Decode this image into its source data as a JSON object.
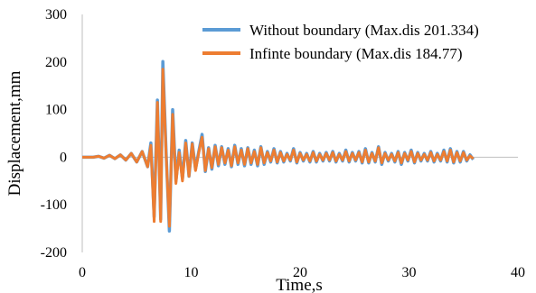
{
  "chart_data": {
    "type": "line",
    "title": "",
    "xlabel": "Time,s",
    "ylabel": "Displacement,mm",
    "xlim": [
      0,
      40
    ],
    "ylim": [
      -200,
      300
    ],
    "x_ticks": [
      0,
      10,
      20,
      30,
      40
    ],
    "y_ticks": [
      -200,
      -100,
      0,
      100,
      200,
      300
    ],
    "x_tick_labels": [
      "0",
      "10",
      "20",
      "30",
      "40"
    ],
    "y_tick_labels": [
      "-200",
      "-100",
      "0",
      "100",
      "200",
      "300"
    ],
    "grid": "none",
    "legend_position": "top-right",
    "series": [
      {
        "name": "Without boundary (Max.dis 201.334)",
        "color": "#5B9BD5",
        "x": [
          0.0,
          1.0,
          1.5,
          2.0,
          2.5,
          3.0,
          3.5,
          4.0,
          4.5,
          5.0,
          5.5,
          6.0,
          6.3,
          6.6,
          6.9,
          7.2,
          7.4,
          7.7,
          8.0,
          8.3,
          8.6,
          8.9,
          9.2,
          9.5,
          9.8,
          10.1,
          10.4,
          10.7,
          11.0,
          11.3,
          11.6,
          11.9,
          12.2,
          12.5,
          12.8,
          13.1,
          13.4,
          13.7,
          14.0,
          14.3,
          14.6,
          14.9,
          15.2,
          15.5,
          15.8,
          16.1,
          16.4,
          16.7,
          17.0,
          17.3,
          17.6,
          17.9,
          18.2,
          18.5,
          18.8,
          19.1,
          19.4,
          19.7,
          20.0,
          20.3,
          20.6,
          20.9,
          21.2,
          21.5,
          21.8,
          22.1,
          22.4,
          22.7,
          23.0,
          23.3,
          23.6,
          23.9,
          24.2,
          24.5,
          24.8,
          25.1,
          25.4,
          25.7,
          26.0,
          26.3,
          26.6,
          26.9,
          27.2,
          27.5,
          27.8,
          28.1,
          28.4,
          28.7,
          29.0,
          29.3,
          29.6,
          29.9,
          30.2,
          30.5,
          30.8,
          31.1,
          31.4,
          31.7,
          32.0,
          32.3,
          32.6,
          32.9,
          33.2,
          33.5,
          33.8,
          34.1,
          34.4,
          34.7,
          35.0,
          35.3,
          35.6,
          35.9
        ],
        "values": [
          0,
          0,
          2,
          -2,
          4,
          -3,
          5,
          -6,
          8,
          -10,
          12,
          -20,
          30,
          -125,
          120,
          -130,
          201,
          10,
          -155,
          100,
          -50,
          15,
          -45,
          35,
          -40,
          30,
          -25,
          12,
          48,
          -30,
          20,
          -25,
          25,
          -18,
          22,
          -15,
          18,
          -20,
          25,
          -15,
          18,
          -18,
          20,
          -15,
          15,
          -18,
          22,
          -15,
          12,
          -10,
          18,
          -12,
          12,
          -10,
          8,
          -8,
          18,
          -12,
          10,
          -8,
          8,
          -10,
          12,
          -10,
          8,
          -8,
          10,
          -8,
          12,
          -10,
          8,
          -8,
          15,
          -10,
          10,
          -8,
          12,
          -12,
          18,
          -12,
          10,
          -10,
          22,
          -15,
          10,
          -8,
          8,
          -10,
          12,
          -15,
          10,
          -8,
          15,
          -12,
          10,
          -8,
          8,
          -8,
          12,
          -10,
          8,
          -8,
          15,
          -10,
          18,
          -12,
          12,
          -10,
          12,
          -8,
          5,
          -5
        ]
      },
      {
        "name": "Infinte boundary (Max.dis 184.77)",
        "color": "#ED7D31",
        "x": [
          0.0,
          1.0,
          1.5,
          2.0,
          2.5,
          3.0,
          3.5,
          4.0,
          4.5,
          5.0,
          5.5,
          6.0,
          6.3,
          6.6,
          6.9,
          7.2,
          7.4,
          7.7,
          8.0,
          8.3,
          8.6,
          8.9,
          9.2,
          9.5,
          9.8,
          10.1,
          10.4,
          10.7,
          11.0,
          11.3,
          11.6,
          11.9,
          12.2,
          12.5,
          12.8,
          13.1,
          13.4,
          13.7,
          14.0,
          14.3,
          14.6,
          14.9,
          15.2,
          15.5,
          15.8,
          16.1,
          16.4,
          16.7,
          17.0,
          17.3,
          17.6,
          17.9,
          18.2,
          18.5,
          18.8,
          19.1,
          19.4,
          19.7,
          20.0,
          20.3,
          20.6,
          20.9,
          21.2,
          21.5,
          21.8,
          22.1,
          22.4,
          22.7,
          23.0,
          23.3,
          23.6,
          23.9,
          24.2,
          24.5,
          24.8,
          25.1,
          25.4,
          25.7,
          26.0,
          26.3,
          26.6,
          26.9,
          27.2,
          27.5,
          27.8,
          28.1,
          28.4,
          28.7,
          29.0,
          29.3,
          29.6,
          29.9,
          30.2,
          30.5,
          30.8,
          31.1,
          31.4,
          31.7,
          32.0,
          32.3,
          32.6,
          32.9,
          33.2,
          33.5,
          33.8,
          34.1,
          34.4,
          34.7,
          35.0,
          35.3,
          35.6,
          35.9
        ],
        "values": [
          0,
          0,
          2,
          -2,
          4,
          -3,
          5,
          -6,
          8,
          -10,
          12,
          -20,
          25,
          -135,
          115,
          -135,
          185,
          5,
          -145,
          90,
          -55,
          10,
          -50,
          30,
          -40,
          28,
          -28,
          10,
          42,
          -28,
          18,
          -22,
          22,
          -15,
          20,
          -12,
          15,
          -18,
          22,
          -12,
          15,
          -15,
          18,
          -12,
          12,
          -15,
          20,
          -12,
          10,
          -8,
          15,
          -10,
          10,
          -8,
          6,
          -6,
          15,
          -10,
          8,
          -6,
          6,
          -8,
          10,
          -8,
          6,
          -6,
          8,
          -6,
          10,
          -8,
          6,
          -6,
          12,
          -8,
          8,
          -6,
          10,
          -10,
          15,
          -10,
          8,
          -8,
          20,
          -12,
          8,
          -6,
          6,
          -8,
          10,
          -12,
          8,
          -6,
          12,
          -10,
          8,
          -6,
          6,
          -6,
          10,
          -8,
          6,
          -6,
          12,
          -8,
          15,
          -10,
          10,
          -8,
          10,
          -6,
          3,
          -3
        ]
      }
    ]
  }
}
